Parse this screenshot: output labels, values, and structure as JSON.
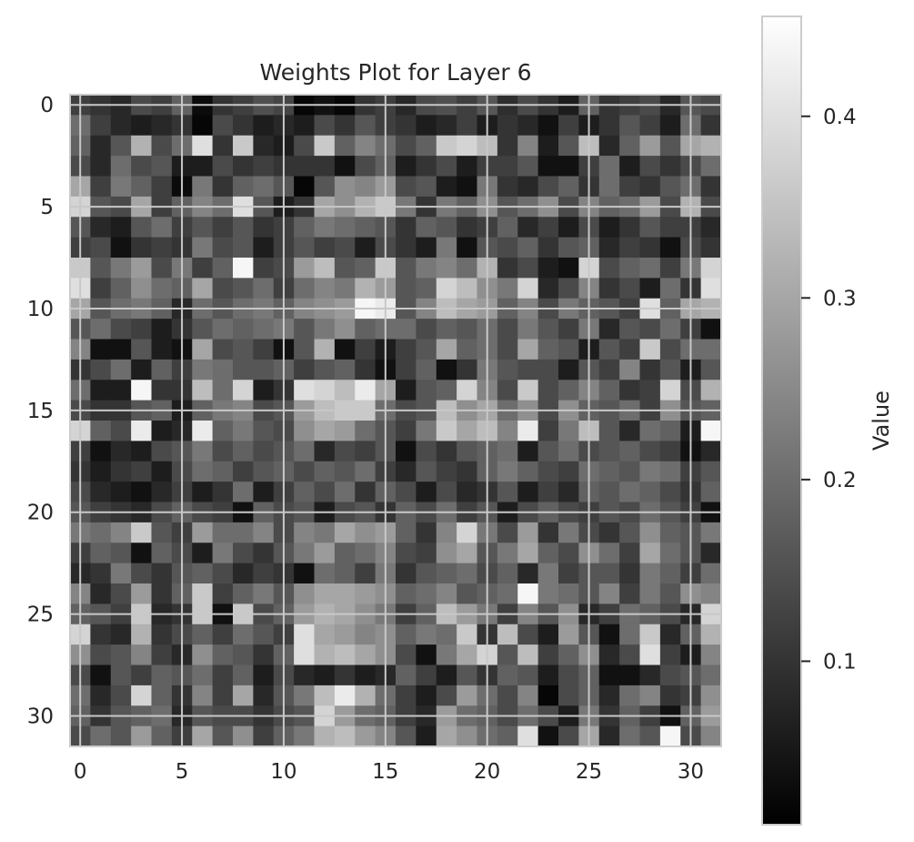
{
  "chart_data": {
    "type": "heatmap",
    "title": "Weights Plot for Layer 6",
    "colormap": "gray",
    "grid": true,
    "n_rows": 32,
    "n_cols": 32,
    "x_ticks": [
      "0",
      "5",
      "10",
      "15",
      "20",
      "25",
      "30"
    ],
    "y_ticks": [
      "0",
      "5",
      "10",
      "15",
      "20",
      "25",
      "30"
    ],
    "xlim": [
      -0.5,
      31.5
    ],
    "ylim": [
      31.5,
      -0.5
    ],
    "colorbar": {
      "label": "Value",
      "range": [
        0.01,
        0.455
      ],
      "ticks": [
        "0.1",
        "0.2",
        "0.3",
        "0.4"
      ]
    },
    "values": [
      [
        0.12,
        0.1,
        0.08,
        0.14,
        0.12,
        0.18,
        0.03,
        0.1,
        0.12,
        0.15,
        0.13,
        0.02,
        0.04,
        0.02,
        0.1,
        0.12,
        0.08,
        0.14,
        0.15,
        0.12,
        0.16,
        0.09,
        0.14,
        0.1,
        0.06,
        0.18,
        0.1,
        0.12,
        0.14,
        0.08,
        0.16,
        0.14
      ],
      [
        0.2,
        0.12,
        0.08,
        0.06,
        0.08,
        0.1,
        0.02,
        0.14,
        0.1,
        0.06,
        0.08,
        0.06,
        0.14,
        0.1,
        0.16,
        0.12,
        0.1,
        0.06,
        0.08,
        0.12,
        0.06,
        0.1,
        0.08,
        0.04,
        0.12,
        0.06,
        0.1,
        0.16,
        0.12,
        0.06,
        0.2,
        0.1
      ],
      [
        0.18,
        0.08,
        0.16,
        0.32,
        0.14,
        0.2,
        0.4,
        0.1,
        0.36,
        0.08,
        0.06,
        0.14,
        0.36,
        0.18,
        0.24,
        0.2,
        0.14,
        0.18,
        0.36,
        0.38,
        0.34,
        0.1,
        0.24,
        0.06,
        0.16,
        0.34,
        0.08,
        0.18,
        0.28,
        0.16,
        0.3,
        0.32
      ],
      [
        0.14,
        0.08,
        0.2,
        0.14,
        0.16,
        0.06,
        0.06,
        0.14,
        0.1,
        0.12,
        0.1,
        0.1,
        0.1,
        0.04,
        0.14,
        0.18,
        0.06,
        0.1,
        0.14,
        0.06,
        0.12,
        0.12,
        0.16,
        0.04,
        0.04,
        0.12,
        0.2,
        0.06,
        0.14,
        0.1,
        0.14,
        0.2
      ],
      [
        0.3,
        0.12,
        0.22,
        0.18,
        0.12,
        0.03,
        0.22,
        0.1,
        0.18,
        0.2,
        0.16,
        0.02,
        0.16,
        0.26,
        0.24,
        0.28,
        0.14,
        0.16,
        0.06,
        0.04,
        0.22,
        0.1,
        0.08,
        0.14,
        0.18,
        0.1,
        0.2,
        0.12,
        0.1,
        0.16,
        0.2,
        0.1
      ],
      [
        0.38,
        0.16,
        0.14,
        0.3,
        0.12,
        0.18,
        0.24,
        0.2,
        0.4,
        0.16,
        0.06,
        0.1,
        0.3,
        0.26,
        0.32,
        0.36,
        0.22,
        0.1,
        0.22,
        0.18,
        0.26,
        0.16,
        0.2,
        0.26,
        0.14,
        0.24,
        0.18,
        0.2,
        0.28,
        0.14,
        0.32,
        0.14
      ],
      [
        0.16,
        0.08,
        0.06,
        0.16,
        0.2,
        0.12,
        0.16,
        0.12,
        0.16,
        0.1,
        0.12,
        0.18,
        0.22,
        0.2,
        0.18,
        0.16,
        0.1,
        0.18,
        0.16,
        0.1,
        0.12,
        0.18,
        0.08,
        0.12,
        0.06,
        0.14,
        0.06,
        0.1,
        0.16,
        0.12,
        0.12,
        0.08
      ],
      [
        0.12,
        0.14,
        0.04,
        0.1,
        0.12,
        0.1,
        0.22,
        0.14,
        0.16,
        0.06,
        0.12,
        0.16,
        0.12,
        0.14,
        0.06,
        0.14,
        0.1,
        0.06,
        0.22,
        0.04,
        0.16,
        0.14,
        0.18,
        0.1,
        0.16,
        0.18,
        0.08,
        0.12,
        0.1,
        0.04,
        0.14,
        0.1
      ],
      [
        0.36,
        0.16,
        0.22,
        0.28,
        0.14,
        0.22,
        0.12,
        0.18,
        0.44,
        0.12,
        0.14,
        0.28,
        0.34,
        0.16,
        0.18,
        0.36,
        0.16,
        0.22,
        0.24,
        0.2,
        0.32,
        0.1,
        0.14,
        0.06,
        0.04,
        0.38,
        0.14,
        0.18,
        0.2,
        0.12,
        0.22,
        0.38
      ],
      [
        0.4,
        0.12,
        0.18,
        0.26,
        0.2,
        0.18,
        0.3,
        0.14,
        0.16,
        0.2,
        0.12,
        0.2,
        0.24,
        0.22,
        0.32,
        0.28,
        0.16,
        0.18,
        0.38,
        0.34,
        0.26,
        0.22,
        0.38,
        0.08,
        0.14,
        0.24,
        0.1,
        0.14,
        0.06,
        0.2,
        0.1,
        0.4
      ],
      [
        0.3,
        0.16,
        0.2,
        0.22,
        0.18,
        0.08,
        0.2,
        0.16,
        0.2,
        0.22,
        0.18,
        0.24,
        0.26,
        0.28,
        0.44,
        0.42,
        0.16,
        0.24,
        0.34,
        0.3,
        0.28,
        0.18,
        0.24,
        0.14,
        0.22,
        0.18,
        0.16,
        0.12,
        0.4,
        0.18,
        0.3,
        0.32
      ],
      [
        0.16,
        0.2,
        0.14,
        0.12,
        0.06,
        0.1,
        0.16,
        0.2,
        0.18,
        0.2,
        0.22,
        0.16,
        0.22,
        0.26,
        0.18,
        0.2,
        0.2,
        0.14,
        0.18,
        0.16,
        0.2,
        0.14,
        0.22,
        0.16,
        0.12,
        0.22,
        0.08,
        0.16,
        0.14,
        0.2,
        0.12,
        0.04
      ],
      [
        0.24,
        0.04,
        0.04,
        0.16,
        0.06,
        0.04,
        0.3,
        0.14,
        0.16,
        0.12,
        0.04,
        0.16,
        0.32,
        0.04,
        0.12,
        0.06,
        0.12,
        0.16,
        0.3,
        0.18,
        0.2,
        0.14,
        0.3,
        0.18,
        0.16,
        0.06,
        0.16,
        0.12,
        0.36,
        0.14,
        0.2,
        0.2
      ],
      [
        0.1,
        0.14,
        0.2,
        0.06,
        0.18,
        0.12,
        0.22,
        0.2,
        0.16,
        0.16,
        0.18,
        0.12,
        0.16,
        0.18,
        0.1,
        0.04,
        0.12,
        0.18,
        0.04,
        0.1,
        0.22,
        0.16,
        0.14,
        0.14,
        0.06,
        0.16,
        0.12,
        0.24,
        0.1,
        0.16,
        0.06,
        0.16
      ],
      [
        0.2,
        0.06,
        0.06,
        0.44,
        0.1,
        0.1,
        0.34,
        0.2,
        0.38,
        0.06,
        0.1,
        0.4,
        0.38,
        0.34,
        0.42,
        0.3,
        0.06,
        0.16,
        0.18,
        0.38,
        0.24,
        0.14,
        0.36,
        0.14,
        0.18,
        0.24,
        0.18,
        0.1,
        0.12,
        0.38,
        0.14,
        0.32
      ],
      [
        0.14,
        0.1,
        0.1,
        0.16,
        0.18,
        0.06,
        0.18,
        0.22,
        0.24,
        0.14,
        0.16,
        0.28,
        0.34,
        0.36,
        0.36,
        0.2,
        0.14,
        0.16,
        0.34,
        0.26,
        0.3,
        0.2,
        0.26,
        0.14,
        0.26,
        0.18,
        0.16,
        0.2,
        0.12,
        0.26,
        0.16,
        0.18
      ],
      [
        0.38,
        0.18,
        0.14,
        0.42,
        0.06,
        0.08,
        0.42,
        0.18,
        0.22,
        0.16,
        0.14,
        0.26,
        0.3,
        0.28,
        0.2,
        0.16,
        0.12,
        0.22,
        0.36,
        0.3,
        0.34,
        0.24,
        0.42,
        0.12,
        0.22,
        0.34,
        0.16,
        0.08,
        0.2,
        0.18,
        0.06,
        0.44
      ],
      [
        0.12,
        0.04,
        0.08,
        0.06,
        0.14,
        0.16,
        0.22,
        0.14,
        0.18,
        0.14,
        0.16,
        0.2,
        0.08,
        0.14,
        0.12,
        0.16,
        0.04,
        0.14,
        0.1,
        0.16,
        0.18,
        0.2,
        0.06,
        0.16,
        0.2,
        0.14,
        0.16,
        0.18,
        0.14,
        0.12,
        0.04,
        0.08
      ],
      [
        0.1,
        0.06,
        0.1,
        0.12,
        0.06,
        0.14,
        0.2,
        0.18,
        0.12,
        0.16,
        0.18,
        0.14,
        0.18,
        0.16,
        0.2,
        0.12,
        0.08,
        0.16,
        0.12,
        0.1,
        0.18,
        0.22,
        0.18,
        0.14,
        0.12,
        0.2,
        0.18,
        0.16,
        0.22,
        0.2,
        0.12,
        0.16
      ],
      [
        0.14,
        0.08,
        0.06,
        0.04,
        0.08,
        0.12,
        0.06,
        0.1,
        0.2,
        0.06,
        0.12,
        0.18,
        0.14,
        0.2,
        0.1,
        0.18,
        0.14,
        0.06,
        0.14,
        0.08,
        0.1,
        0.16,
        0.06,
        0.12,
        0.08,
        0.18,
        0.16,
        0.2,
        0.18,
        0.14,
        0.1,
        0.18
      ],
      [
        0.16,
        0.12,
        0.1,
        0.08,
        0.14,
        0.18,
        0.14,
        0.12,
        0.04,
        0.18,
        0.14,
        0.16,
        0.06,
        0.14,
        0.16,
        0.1,
        0.18,
        0.14,
        0.2,
        0.12,
        0.16,
        0.06,
        0.14,
        0.18,
        0.14,
        0.12,
        0.16,
        0.14,
        0.2,
        0.16,
        0.12,
        0.04
      ],
      [
        0.22,
        0.2,
        0.24,
        0.36,
        0.16,
        0.12,
        0.28,
        0.2,
        0.2,
        0.24,
        0.14,
        0.24,
        0.22,
        0.3,
        0.26,
        0.28,
        0.18,
        0.1,
        0.24,
        0.38,
        0.22,
        0.14,
        0.28,
        0.1,
        0.22,
        0.14,
        0.1,
        0.16,
        0.26,
        0.18,
        0.16,
        0.22
      ],
      [
        0.12,
        0.18,
        0.16,
        0.04,
        0.18,
        0.14,
        0.06,
        0.22,
        0.14,
        0.1,
        0.16,
        0.22,
        0.28,
        0.18,
        0.2,
        0.24,
        0.14,
        0.12,
        0.26,
        0.3,
        0.16,
        0.22,
        0.3,
        0.18,
        0.14,
        0.26,
        0.2,
        0.12,
        0.3,
        0.2,
        0.16,
        0.08
      ],
      [
        0.08,
        0.1,
        0.22,
        0.14,
        0.1,
        0.16,
        0.18,
        0.14,
        0.08,
        0.12,
        0.1,
        0.04,
        0.2,
        0.18,
        0.12,
        0.22,
        0.1,
        0.16,
        0.18,
        0.2,
        0.14,
        0.18,
        0.08,
        0.22,
        0.12,
        0.16,
        0.16,
        0.1,
        0.22,
        0.18,
        0.12,
        0.2
      ],
      [
        0.24,
        0.08,
        0.14,
        0.28,
        0.1,
        0.18,
        0.36,
        0.12,
        0.18,
        0.22,
        0.16,
        0.26,
        0.3,
        0.3,
        0.28,
        0.26,
        0.18,
        0.2,
        0.24,
        0.16,
        0.18,
        0.2,
        0.44,
        0.22,
        0.2,
        0.16,
        0.24,
        0.12,
        0.22,
        0.16,
        0.26,
        0.24
      ],
      [
        0.18,
        0.16,
        0.12,
        0.36,
        0.08,
        0.1,
        0.36,
        0.04,
        0.36,
        0.14,
        0.18,
        0.28,
        0.32,
        0.3,
        0.26,
        0.22,
        0.12,
        0.18,
        0.34,
        0.28,
        0.22,
        0.12,
        0.24,
        0.16,
        0.26,
        0.08,
        0.12,
        0.2,
        0.18,
        0.14,
        0.08,
        0.38
      ],
      [
        0.38,
        0.1,
        0.08,
        0.32,
        0.1,
        0.14,
        0.18,
        0.12,
        0.2,
        0.16,
        0.12,
        0.4,
        0.3,
        0.28,
        0.24,
        0.26,
        0.18,
        0.22,
        0.2,
        0.36,
        0.1,
        0.34,
        0.14,
        0.06,
        0.28,
        0.16,
        0.04,
        0.2,
        0.36,
        0.08,
        0.18,
        0.32
      ],
      [
        0.26,
        0.14,
        0.16,
        0.24,
        0.12,
        0.08,
        0.26,
        0.18,
        0.16,
        0.1,
        0.18,
        0.4,
        0.32,
        0.34,
        0.3,
        0.26,
        0.14,
        0.04,
        0.22,
        0.3,
        0.38,
        0.16,
        0.34,
        0.12,
        0.18,
        0.26,
        0.08,
        0.14,
        0.4,
        0.12,
        0.06,
        0.24
      ],
      [
        0.14,
        0.04,
        0.16,
        0.12,
        0.18,
        0.16,
        0.2,
        0.12,
        0.18,
        0.06,
        0.14,
        0.08,
        0.06,
        0.1,
        0.06,
        0.08,
        0.18,
        0.12,
        0.06,
        0.16,
        0.1,
        0.18,
        0.16,
        0.06,
        0.14,
        0.18,
        0.04,
        0.04,
        0.08,
        0.14,
        0.16,
        0.2
      ],
      [
        0.2,
        0.08,
        0.14,
        0.38,
        0.18,
        0.1,
        0.24,
        0.12,
        0.3,
        0.08,
        0.16,
        0.22,
        0.34,
        0.42,
        0.32,
        0.2,
        0.12,
        0.06,
        0.14,
        0.28,
        0.2,
        0.14,
        0.24,
        0.02,
        0.14,
        0.18,
        0.08,
        0.2,
        0.24,
        0.1,
        0.12,
        0.26
      ],
      [
        0.18,
        0.1,
        0.16,
        0.18,
        0.2,
        0.08,
        0.16,
        0.14,
        0.14,
        0.1,
        0.14,
        0.16,
        0.38,
        0.28,
        0.2,
        0.18,
        0.12,
        0.08,
        0.28,
        0.2,
        0.18,
        0.14,
        0.2,
        0.14,
        0.06,
        0.22,
        0.1,
        0.18,
        0.12,
        0.04,
        0.18,
        0.28
      ],
      [
        0.14,
        0.2,
        0.16,
        0.28,
        0.18,
        0.12,
        0.3,
        0.16,
        0.26,
        0.12,
        0.18,
        0.22,
        0.32,
        0.34,
        0.28,
        0.24,
        0.16,
        0.06,
        0.3,
        0.26,
        0.2,
        0.18,
        0.4,
        0.04,
        0.14,
        0.3,
        0.08,
        0.2,
        0.16,
        0.44,
        0.14,
        0.24
      ]
    ]
  }
}
